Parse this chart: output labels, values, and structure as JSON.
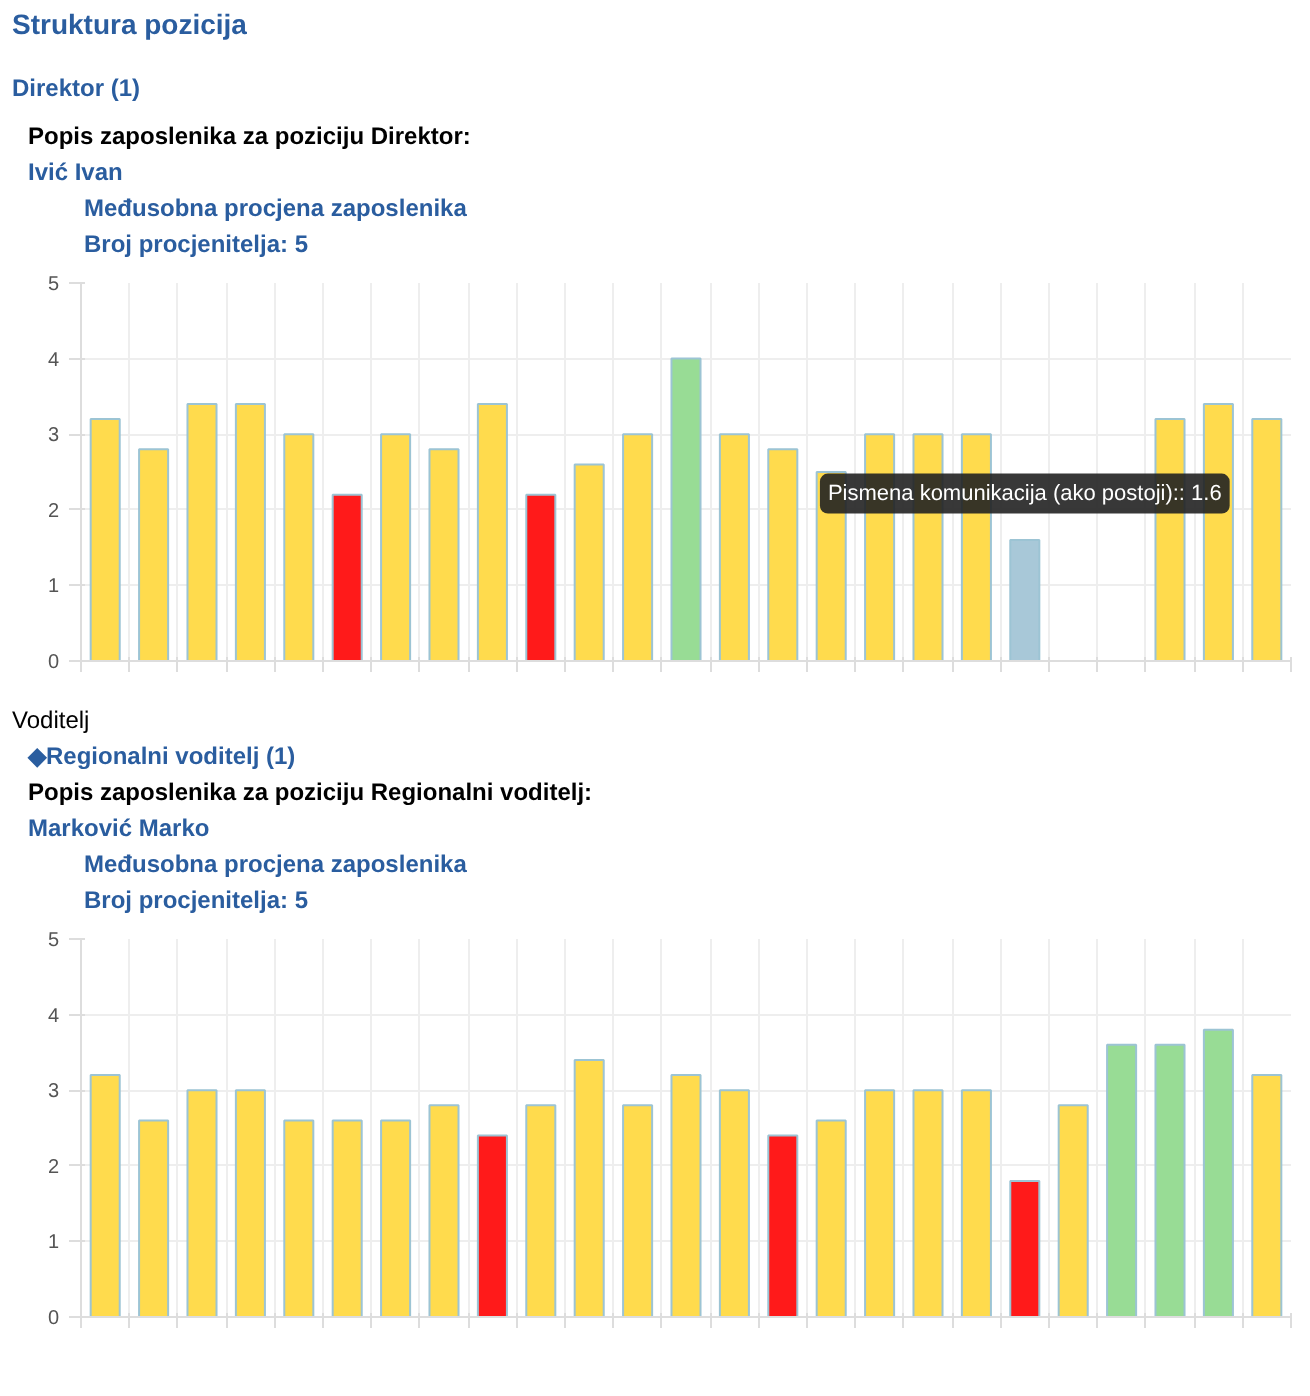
{
  "chart_data": [
    {
      "type": "bar",
      "title": "Struktura pozicija",
      "subtitle": "Direktor (1)",
      "annotations": [
        "Popis zaposlenika za poziciju Direktor:",
        "Ivić Ivan",
        "Međusobna procjena zaposlenika",
        "Broj procjenitelja: 5",
        {
          "text": "Pismena komunikacija (ako postoji):: 1.6",
          "y": 1.6
        }
      ],
      "categories": [
        null,
        null,
        null,
        null,
        null,
        null,
        null,
        null,
        null,
        null,
        null,
        null,
        null,
        null,
        null,
        null,
        null,
        null,
        null,
        null,
        null,
        null,
        null,
        null,
        null
      ],
      "values": [
        3.2,
        2.8,
        3.4,
        3.4,
        3.0,
        2.2,
        3.0,
        2.8,
        3.4,
        2.2,
        2.6,
        3.0,
        4.0,
        3.0,
        2.8,
        2.5,
        3.0,
        3.0,
        3.0,
        1.6,
        null,
        null,
        3.2,
        3.4,
        3.2
      ],
      "colors": [
        "#ffdb4d",
        "#ffdb4d",
        "#ffdb4d",
        "#ffdb4d",
        "#ffdb4d",
        "#ff1a1a",
        "#ffdb4d",
        "#ffdb4d",
        "#ffdb4d",
        "#ff1a1a",
        "#ffdb4d",
        "#ffdb4d",
        "#98dc95",
        "#ffdb4d",
        "#ffdb4d",
        "#ffdb4d",
        "#ffdb4d",
        "#ffdb4d",
        "#ffdb4d",
        "#a8c8d8",
        "#ff1a1a",
        "#ff1a1a",
        "#ffdb4d",
        "#ffdb4d",
        "#ffdb4d"
      ],
      "ylim": [
        0,
        5
      ],
      "yticks": [
        0,
        1,
        2,
        3,
        4,
        5
      ],
      "grid": true,
      "tick_labels": "y"
    },
    {
      "type": "bar",
      "title": "Voditelj",
      "subtitle": "◆Regionalni voditelj (1)",
      "annotations": [
        "Popis zaposlenika za poziciju Regionalni voditelj:",
        "Marković Marko",
        "Međusobna procjena zaposlenika",
        "Broj procjenitelja: 5"
      ],
      "categories": [
        null,
        null,
        null,
        null,
        null,
        null,
        null,
        null,
        null,
        null,
        null,
        null,
        null,
        null,
        null,
        null,
        null,
        null,
        null,
        null,
        null,
        null,
        null,
        null,
        null
      ],
      "values": [
        3.2,
        2.6,
        3.0,
        3.0,
        2.6,
        2.6,
        2.6,
        2.8,
        2.4,
        2.8,
        3.4,
        2.8,
        3.2,
        3.0,
        2.4,
        2.6,
        3.0,
        3.0,
        3.0,
        1.8,
        2.8,
        3.6,
        3.6,
        3.8,
        3.2
      ],
      "colors": [
        "#ffdb4d",
        "#ffdb4d",
        "#ffdb4d",
        "#ffdb4d",
        "#ffdb4d",
        "#ffdb4d",
        "#ffdb4d",
        "#ffdb4d",
        "#ff1a1a",
        "#ffdb4d",
        "#ffdb4d",
        "#ffdb4d",
        "#ffdb4d",
        "#ffdb4d",
        "#ff1a1a",
        "#ffdb4d",
        "#ffdb4d",
        "#ffdb4d",
        "#ffdb4d",
        "#ff1a1a",
        "#ffdb4d",
        "#98dc95",
        "#98dc95",
        "#98dc95",
        "#ffdb4d"
      ],
      "ylim": [
        0,
        5
      ],
      "yticks": [
        0,
        1,
        2,
        3,
        4,
        5
      ],
      "grid": true,
      "tick_labels": "y"
    }
  ]
}
